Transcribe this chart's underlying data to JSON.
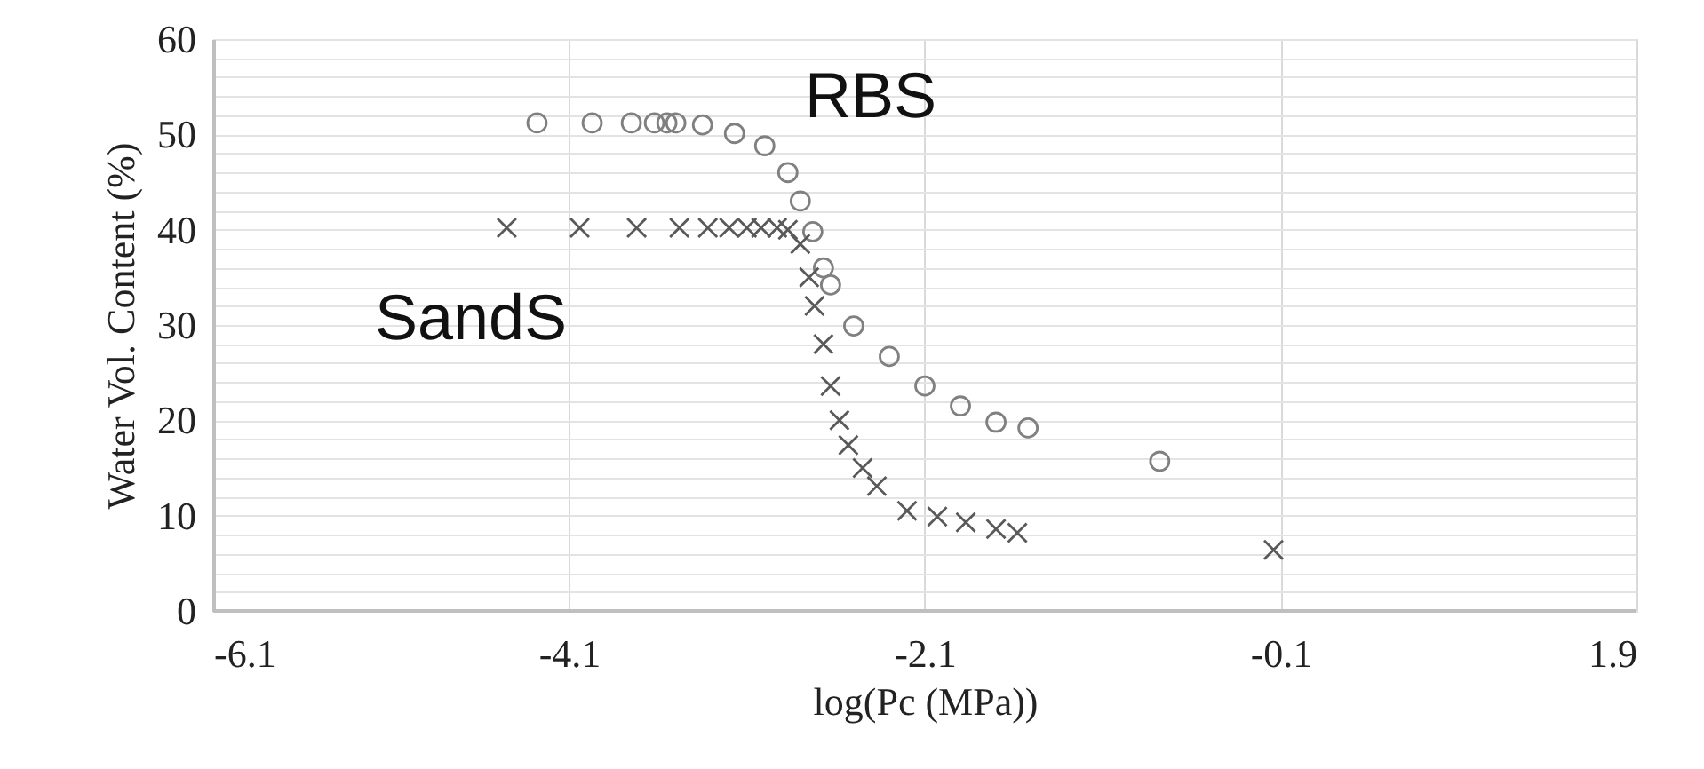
{
  "chart_data": {
    "type": "scatter",
    "xlabel": "log(Pc (MPa))",
    "ylabel": "Water Vol. Content (%)",
    "xlim": [
      -6.1,
      1.9
    ],
    "xticks": [
      -6.1,
      -4.1,
      -2.1,
      -0.1,
      1.9
    ],
    "ylim": [
      0,
      60
    ],
    "yticks": [
      0,
      {
        "value": 2,
        "label": null
      },
      {
        "value": 4,
        "label": null
      },
      {
        "value": 6,
        "label": null
      },
      {
        "value": 8,
        "label": null
      },
      10,
      {
        "value": 12,
        "label": null
      },
      {
        "value": 14,
        "label": null
      },
      {
        "value": 16,
        "label": null
      },
      {
        "value": 18,
        "label": null
      },
      20,
      {
        "value": 22,
        "label": null
      },
      {
        "value": 24,
        "label": null
      },
      {
        "value": 26,
        "label": null
      },
      {
        "value": 28,
        "label": null
      },
      30,
      {
        "value": 32,
        "label": null
      },
      {
        "value": 34,
        "label": null
      },
      {
        "value": 36,
        "label": null
      },
      {
        "value": 38,
        "label": null
      },
      40,
      {
        "value": 42,
        "label": null
      },
      {
        "value": 44,
        "label": null
      },
      {
        "value": 46,
        "label": null
      },
      {
        "value": 48,
        "label": null
      },
      50,
      {
        "value": 52,
        "label": null
      },
      {
        "value": 54,
        "label": null
      },
      {
        "value": 56,
        "label": null
      },
      {
        "value": 58,
        "label": null
      },
      60
    ],
    "grid": true,
    "legend": false,
    "series": [
      {
        "name": "RBS",
        "color": "#808080",
        "marker": "circle",
        "x": [
          -4.28,
          -3.97,
          -3.75,
          -3.62,
          -3.55,
          -3.5,
          -3.35,
          -3.17,
          -3.0,
          -2.87,
          -2.8,
          -2.73,
          -2.67,
          -2.63,
          -2.5,
          -2.3,
          -2.1,
          -1.9,
          -1.7,
          -1.52,
          -0.78
        ],
        "values": [
          51.2,
          51.2,
          51.2,
          51.2,
          51.2,
          51.2,
          51.0,
          50.1,
          48.8,
          46,
          43,
          39.8,
          36,
          34.2,
          29.9,
          26.7,
          23.6,
          21.5,
          19.8,
          19.2,
          15.7
        ]
      },
      {
        "name": "SandS",
        "color": "#595959",
        "marker": "cross",
        "x": [
          -4.45,
          -4.04,
          -3.72,
          -3.48,
          -3.32,
          -3.2,
          -3.1,
          -3.02,
          -2.93,
          -2.87,
          -2.8,
          -2.75,
          -2.72,
          -2.67,
          -2.63,
          -2.58,
          -2.53,
          -2.45,
          -2.37,
          -2.2,
          -2.03,
          -1.87,
          -1.7,
          -1.58,
          -0.14
        ],
        "values": [
          40.2,
          40.2,
          40.2,
          40.2,
          40.2,
          40.2,
          40.2,
          40.2,
          40.2,
          40.0,
          38.5,
          35,
          32,
          28,
          23.6,
          20,
          17.4,
          15,
          13.1,
          10.5,
          9.9,
          9.3,
          8.6,
          8.2,
          6.4
        ]
      }
    ]
  }
}
